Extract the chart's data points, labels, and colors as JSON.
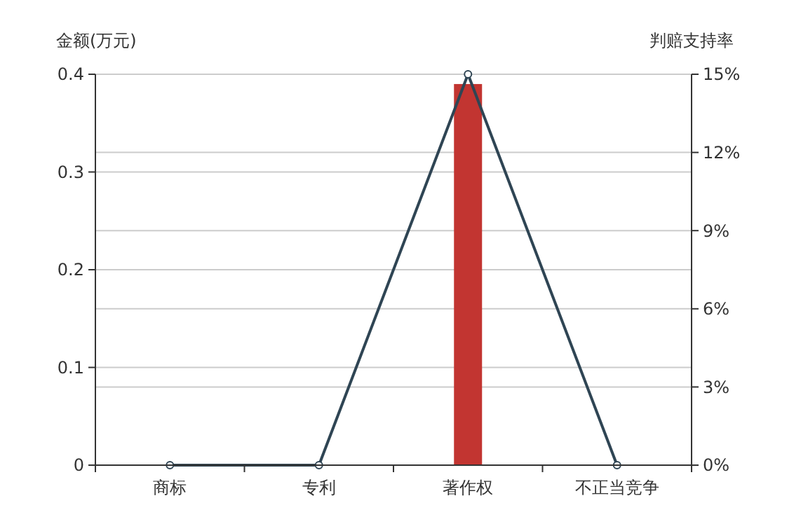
{
  "chart_data": {
    "type": "bar",
    "ylabel": "金额(万元)",
    "y2label": "判赔支持率",
    "categories": [
      "商标",
      "专利",
      "著作权",
      "不正当竞争"
    ],
    "series": [
      {
        "color": "#c23531",
        "values": [
          0,
          0,
          0.39,
          0
        ]
      },
      {
        "type": "line",
        "axis": "y2",
        "color": "#2f4554",
        "marker": "circle",
        "values": [
          0,
          0,
          15,
          0
        ]
      }
    ],
    "ylim": [
      0,
      0.4
    ],
    "yticks": [
      0,
      0.1,
      0.2,
      0.3,
      0.4
    ],
    "y2lim": [
      0,
      15
    ],
    "y2ticks": [
      {
        "value": 0,
        "label": "0%"
      },
      {
        "value": 3,
        "label": "3%"
      },
      {
        "value": 6,
        "label": "6%"
      },
      {
        "value": 9,
        "label": "9%"
      },
      {
        "value": 12,
        "label": "12%"
      },
      {
        "value": 15,
        "label": "15%"
      }
    ],
    "grid": true
  }
}
